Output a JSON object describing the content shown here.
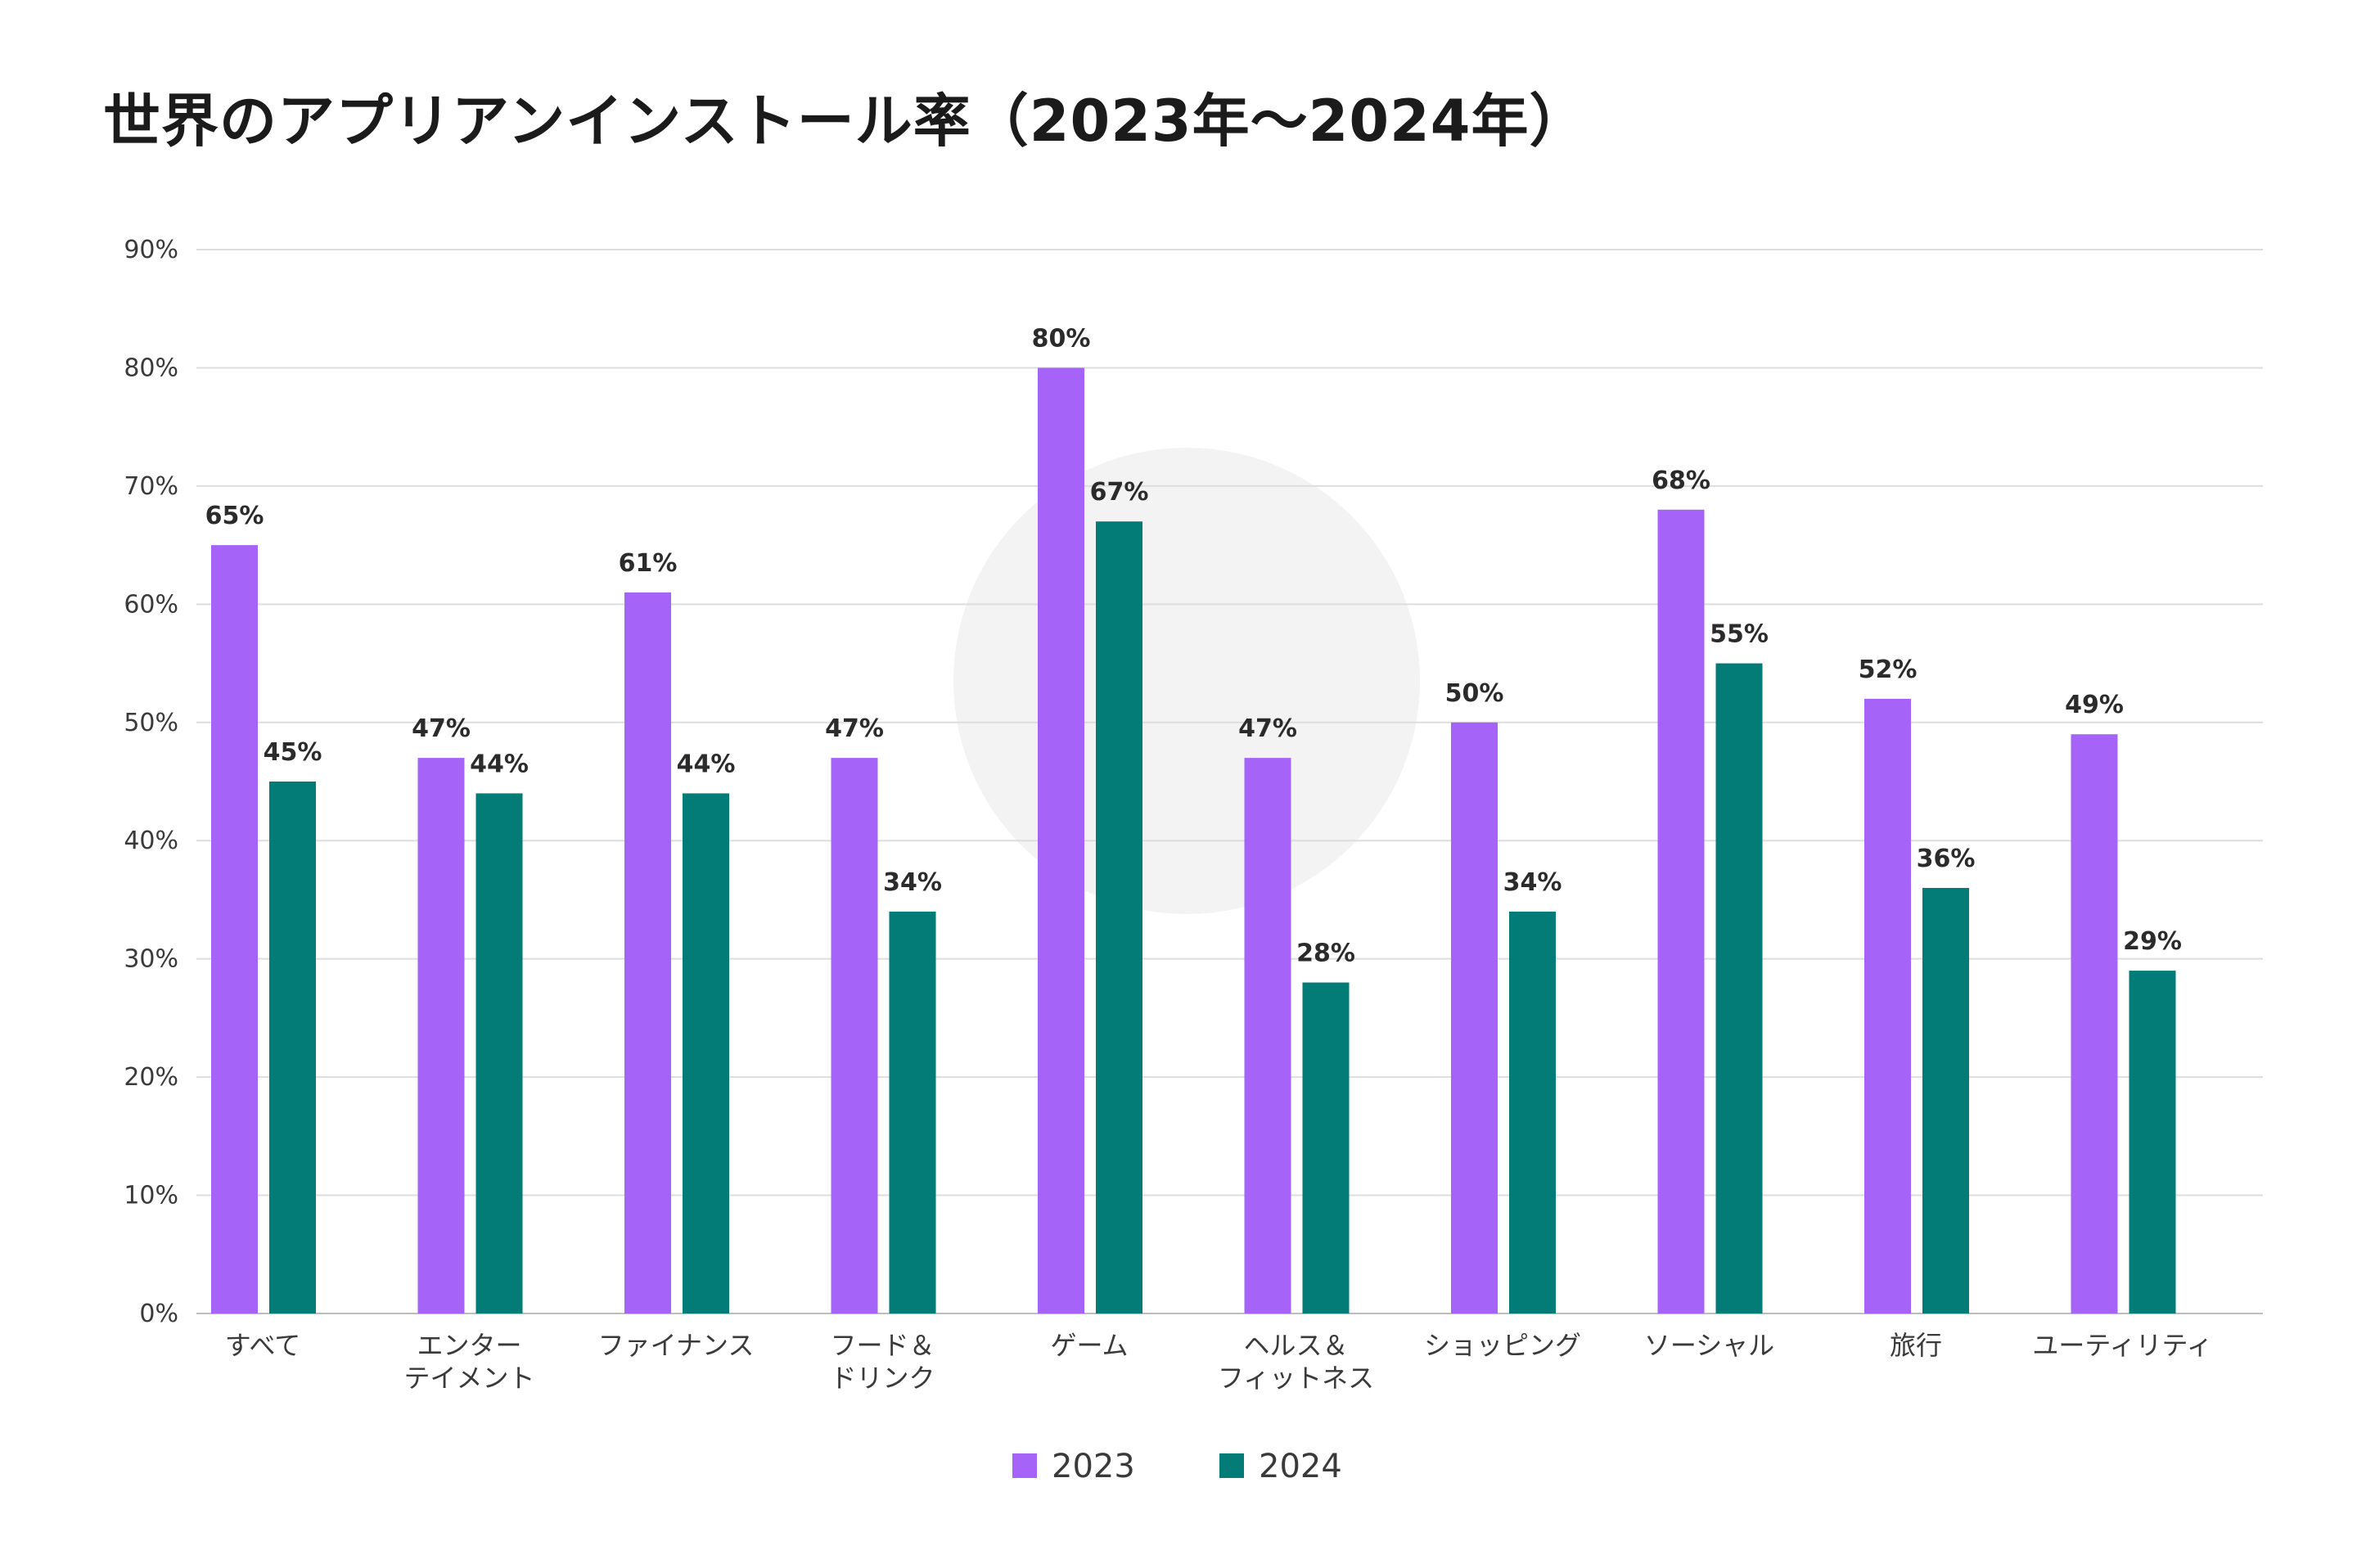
{
  "chart_data": {
    "type": "bar",
    "title": "世界のアプリアンインストール率（2023年～2024年）",
    "categories": [
      [
        "すべて"
      ],
      [
        "エンター",
        "テイメント"
      ],
      [
        "ファイナンス"
      ],
      [
        "フード＆",
        "ドリンク"
      ],
      [
        "ゲーム"
      ],
      [
        "ヘルス＆",
        "フィットネス"
      ],
      [
        "ショッピング"
      ],
      [
        "ソーシャル"
      ],
      [
        "旅行"
      ],
      [
        "ユーティリティ"
      ]
    ],
    "series": [
      {
        "name": "2023",
        "color": "#a564f7",
        "values": [
          65,
          47,
          61,
          47,
          80,
          47,
          50,
          68,
          52,
          49
        ]
      },
      {
        "name": "2024",
        "color": "#037b76",
        "values": [
          45,
          44,
          44,
          34,
          67,
          28,
          34,
          55,
          36,
          29
        ]
      }
    ],
    "ylim": [
      0,
      90
    ],
    "yticks": [
      0,
      10,
      20,
      30,
      40,
      50,
      60,
      70,
      80,
      90
    ],
    "ytick_suffix": "%",
    "label_suffix": "%",
    "grid": true,
    "legend_position": "bottom-center"
  }
}
